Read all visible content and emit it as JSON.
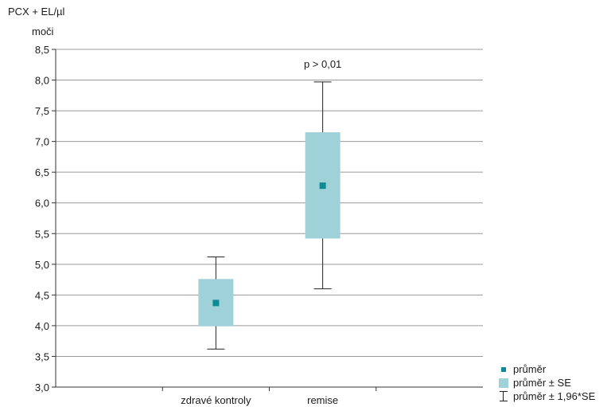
{
  "chart_data": {
    "type": "box",
    "ylabel_line1": "PCX + EL/µl",
    "ylabel_line2": "moči",
    "ylim": [
      3.0,
      8.5
    ],
    "yticks": [
      {
        "value": 3.0,
        "label": "3,0"
      },
      {
        "value": 3.5,
        "label": "3,5"
      },
      {
        "value": 4.0,
        "label": "4,0"
      },
      {
        "value": 4.5,
        "label": "4,5"
      },
      {
        "value": 5.0,
        "label": "5,0"
      },
      {
        "value": 5.5,
        "label": "5,5"
      },
      {
        "value": 6.0,
        "label": "6,0"
      },
      {
        "value": 6.5,
        "label": "6,5"
      },
      {
        "value": 7.0,
        "label": "7,0"
      },
      {
        "value": 7.5,
        "label": "7,5"
      },
      {
        "value": 8.0,
        "label": "8,0"
      },
      {
        "value": 8.5,
        "label": "8,5"
      }
    ],
    "categories": [
      "",
      "zdravé kontroly",
      "remise",
      ""
    ],
    "groups": [
      {
        "category": "zdravé kontroly",
        "mean": 4.37,
        "se_low": 3.99,
        "se_high": 4.76,
        "ci_low": 3.62,
        "ci_high": 5.12
      },
      {
        "category": "remise",
        "mean": 6.28,
        "se_low": 5.42,
        "se_high": 7.15,
        "ci_low": 4.6,
        "ci_high": 7.97
      }
    ],
    "annotation": {
      "text": "p > 0,01",
      "category": "remise",
      "y": 8.2
    },
    "legend": [
      "průměr",
      "průměr ± SE",
      "průměr ± 1,96*SE"
    ],
    "grid": true,
    "colors": {
      "mean": "#0d8a94",
      "box": "#9fd1d8",
      "grid": "#9a9a9a",
      "axis": "#333333"
    }
  }
}
